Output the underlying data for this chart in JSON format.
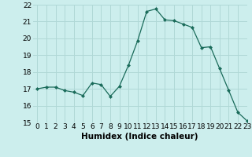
{
  "x": [
    0,
    1,
    2,
    3,
    4,
    5,
    6,
    7,
    8,
    9,
    10,
    11,
    12,
    13,
    14,
    15,
    16,
    17,
    18,
    19,
    20,
    21,
    22,
    23
  ],
  "y": [
    17.0,
    17.1,
    17.1,
    16.9,
    16.8,
    16.6,
    17.35,
    17.25,
    16.55,
    17.15,
    18.4,
    19.85,
    21.6,
    21.75,
    21.1,
    21.05,
    20.85,
    20.65,
    19.45,
    19.5,
    18.2,
    16.9,
    15.6,
    15.1
  ],
  "line_color": "#1a6b5a",
  "marker": "D",
  "marker_size": 2.0,
  "bg_color": "#cceeed",
  "grid_color": "#b0d8d6",
  "xlabel": "Humidex (Indice chaleur)",
  "ylim": [
    15,
    22
  ],
  "xlim": [
    -0.5,
    23
  ],
  "yticks": [
    15,
    16,
    17,
    18,
    19,
    20,
    21,
    22
  ],
  "xticks": [
    0,
    1,
    2,
    3,
    4,
    5,
    6,
    7,
    8,
    9,
    10,
    11,
    12,
    13,
    14,
    15,
    16,
    17,
    18,
    19,
    20,
    21,
    22,
    23
  ],
  "xlabel_fontsize": 7.5,
  "tick_fontsize": 6.5
}
